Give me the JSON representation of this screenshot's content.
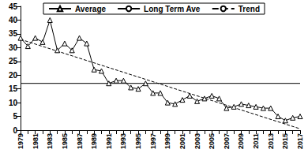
{
  "chart_data": {
    "type": "line",
    "categories": [
      "1979",
      null,
      "1981",
      null,
      "1983",
      null,
      "1985",
      null,
      "1987",
      null,
      "1989",
      null,
      "1991",
      null,
      "1993",
      null,
      "1995",
      null,
      "1997",
      null,
      "1999",
      null,
      "2001",
      null,
      "2003",
      null,
      "2005",
      null,
      "2007",
      null,
      "2009",
      null,
      "2011",
      null,
      "2013",
      null,
      "2015",
      null,
      "2017"
    ],
    "series": [
      {
        "name": "Average",
        "color": "#000000",
        "marker": "triangle",
        "line_style": "solid",
        "values": [
          33.5,
          30.5,
          33.5,
          32,
          40,
          29,
          31.5,
          29,
          33.5,
          31.5,
          22,
          21.5,
          17,
          18,
          18,
          15.5,
          15,
          17,
          13.5,
          13.5,
          10,
          9.5,
          11,
          12.5,
          10.5,
          11.5,
          12.5,
          11.5,
          8,
          8.5,
          9.5,
          9,
          8.5,
          8,
          8,
          5,
          3.5,
          4.5,
          5
        ]
      },
      {
        "name": "Long Term Ave",
        "color": "#000000",
        "line_style": "solid",
        "values": [
          17,
          null,
          null,
          null,
          null,
          null,
          null,
          null,
          null,
          null,
          null,
          null,
          null,
          null,
          null,
          null,
          null,
          null,
          null,
          null,
          null,
          null,
          null,
          null,
          null,
          null,
          null,
          null,
          null,
          null,
          null,
          null,
          null,
          null,
          null,
          null,
          null,
          null,
          17
        ]
      },
      {
        "name": "Trend",
        "color": "#000000",
        "line_style": "dashed",
        "values": [
          33,
          null,
          null,
          null,
          null,
          null,
          null,
          null,
          null,
          null,
          null,
          null,
          null,
          null,
          null,
          null,
          null,
          null,
          null,
          null,
          null,
          null,
          null,
          null,
          null,
          null,
          null,
          null,
          null,
          null,
          null,
          null,
          null,
          null,
          null,
          null,
          null,
          null,
          0.5
        ]
      }
    ],
    "ylim": [
      0,
      45
    ],
    "yticks": [
      0,
      5,
      10,
      15,
      20,
      25,
      30,
      35,
      40,
      45
    ],
    "grid": false,
    "legend": "top"
  }
}
